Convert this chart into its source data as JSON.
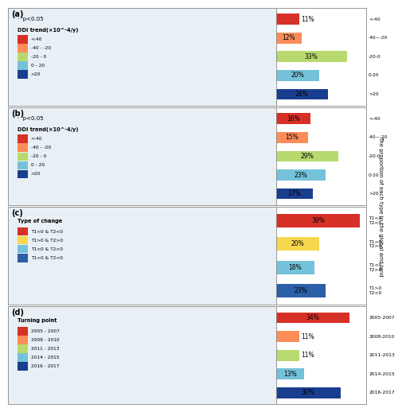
{
  "panels": [
    {
      "label": "(a)",
      "map_legend_title": "DDI trend(×10^-4/y)",
      "map_note": "·  p<0.05",
      "bar_values": [
        11,
        12,
        33,
        20,
        24
      ],
      "bar_colors": [
        "#d73027",
        "#fc8d59",
        "#b8d96e",
        "#74c2d9",
        "#1a3e8f"
      ],
      "bar_labels": [
        "<-40",
        "-40~-20",
        "-20-0",
        "0-20",
        ">20"
      ],
      "map_legend_colors": [
        "#d73027",
        "#fc8d59",
        "#b8d96e",
        "#74c2d9",
        "#1a3e8f"
      ],
      "map_legend_labels": [
        "<-40",
        "-40 - -20",
        "-20 - 0",
        "0 - 20",
        ">20"
      ],
      "n_bars": 5
    },
    {
      "label": "(b)",
      "map_legend_title": "DDI trend(×10^-4/y)",
      "map_note": "·  p<0.05",
      "bar_values": [
        16,
        15,
        29,
        23,
        17
      ],
      "bar_colors": [
        "#d73027",
        "#fc8d59",
        "#b8d96e",
        "#74c2d9",
        "#1a3e8f"
      ],
      "bar_labels": [
        "<-40",
        "-40~-20",
        "-20-0",
        "0-20",
        ">20"
      ],
      "map_legend_colors": [
        "#d73027",
        "#fc8d59",
        "#b8d96e",
        "#74c2d9",
        "#1a3e8f"
      ],
      "map_legend_labels": [
        "<-40",
        "-40 - -20",
        "-20 - 0",
        "0 - 20",
        ">20"
      ],
      "n_bars": 5
    },
    {
      "label": "(c)",
      "map_legend_title": "Type of change",
      "map_note": "",
      "bar_values": [
        39,
        20,
        18,
        23
      ],
      "bar_colors": [
        "#d73027",
        "#f5d84e",
        "#74c2d9",
        "#2b5fa8"
      ],
      "bar_labels": [
        "T1<0\nT2<0",
        "T1>0\nT2>0",
        "T1<0\nT2>0",
        "T1>0\nT2<0"
      ],
      "map_legend_colors": [
        "#d73027",
        "#f5d84e",
        "#74c2d9",
        "#2b5fa8"
      ],
      "map_legend_labels": [
        "T1<0 & T2<0",
        "T1>0 & T2>0",
        "T1<0 & T2>0",
        "T1>0 & T2<0"
      ],
      "n_bars": 4
    },
    {
      "label": "(d)",
      "map_legend_title": "Turning point",
      "map_note": "",
      "bar_values": [
        34,
        11,
        11,
        13,
        30
      ],
      "bar_colors": [
        "#d73027",
        "#fc8d59",
        "#b8d96e",
        "#74c2d9",
        "#1a3e8f"
      ],
      "bar_labels": [
        "2005-2007",
        "2008-2010",
        "2011-2013",
        "2014-2015",
        "2016-2017"
      ],
      "map_legend_colors": [
        "#d73027",
        "#fc8d59",
        "#b8d96e",
        "#74c2d9",
        "#1a3e8f"
      ],
      "map_legend_labels": [
        "2005 - 2007",
        "2008 - 2010",
        "2011 - 2013",
        "2014 - 2015",
        "2016 - 2017"
      ],
      "n_bars": 5
    }
  ],
  "right_label": "The proportion of each type in the global arid land",
  "bg_color": "#ffffff",
  "map_bg_color": "#e8eff5",
  "border_color": "#888888",
  "bar_xlim": 42
}
